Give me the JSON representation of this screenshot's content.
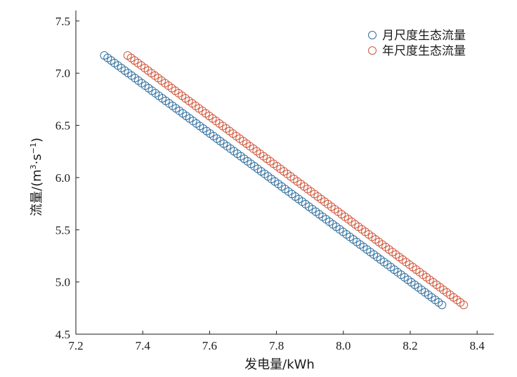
{
  "chart_data": {
    "type": "scatter",
    "title": "",
    "xlabel": "发电量/kWh",
    "ylabel_main": "流量/(m",
    "ylabel_sup1": "3",
    "ylabel_mid": "·s",
    "ylabel_sup2": "−1",
    "ylabel_end": ")",
    "xlim": [
      7.2,
      8.45
    ],
    "ylim": [
      4.5,
      7.6
    ],
    "xticks": [
      "7.2",
      "7.4",
      "7.6",
      "7.8",
      "8.0",
      "8.2",
      "8.4"
    ],
    "yticks": [
      "4.5",
      "5.0",
      "5.5",
      "6.0",
      "6.5",
      "7.0",
      "7.5"
    ],
    "grid": false,
    "legend_position": "top-right",
    "marker": "hollow-circle",
    "series": [
      {
        "name": "月尺度生态流量",
        "color": "#2e6e9e",
        "n_points": 100,
        "x_start": 7.285,
        "x_end": 8.295,
        "y_start": 7.17,
        "y_end": 4.78
      },
      {
        "name": "年尺度生态流量",
        "color": "#d0553a",
        "n_points": 100,
        "x_start": 7.355,
        "x_end": 8.36,
        "y_start": 7.17,
        "y_end": 4.78
      }
    ]
  }
}
